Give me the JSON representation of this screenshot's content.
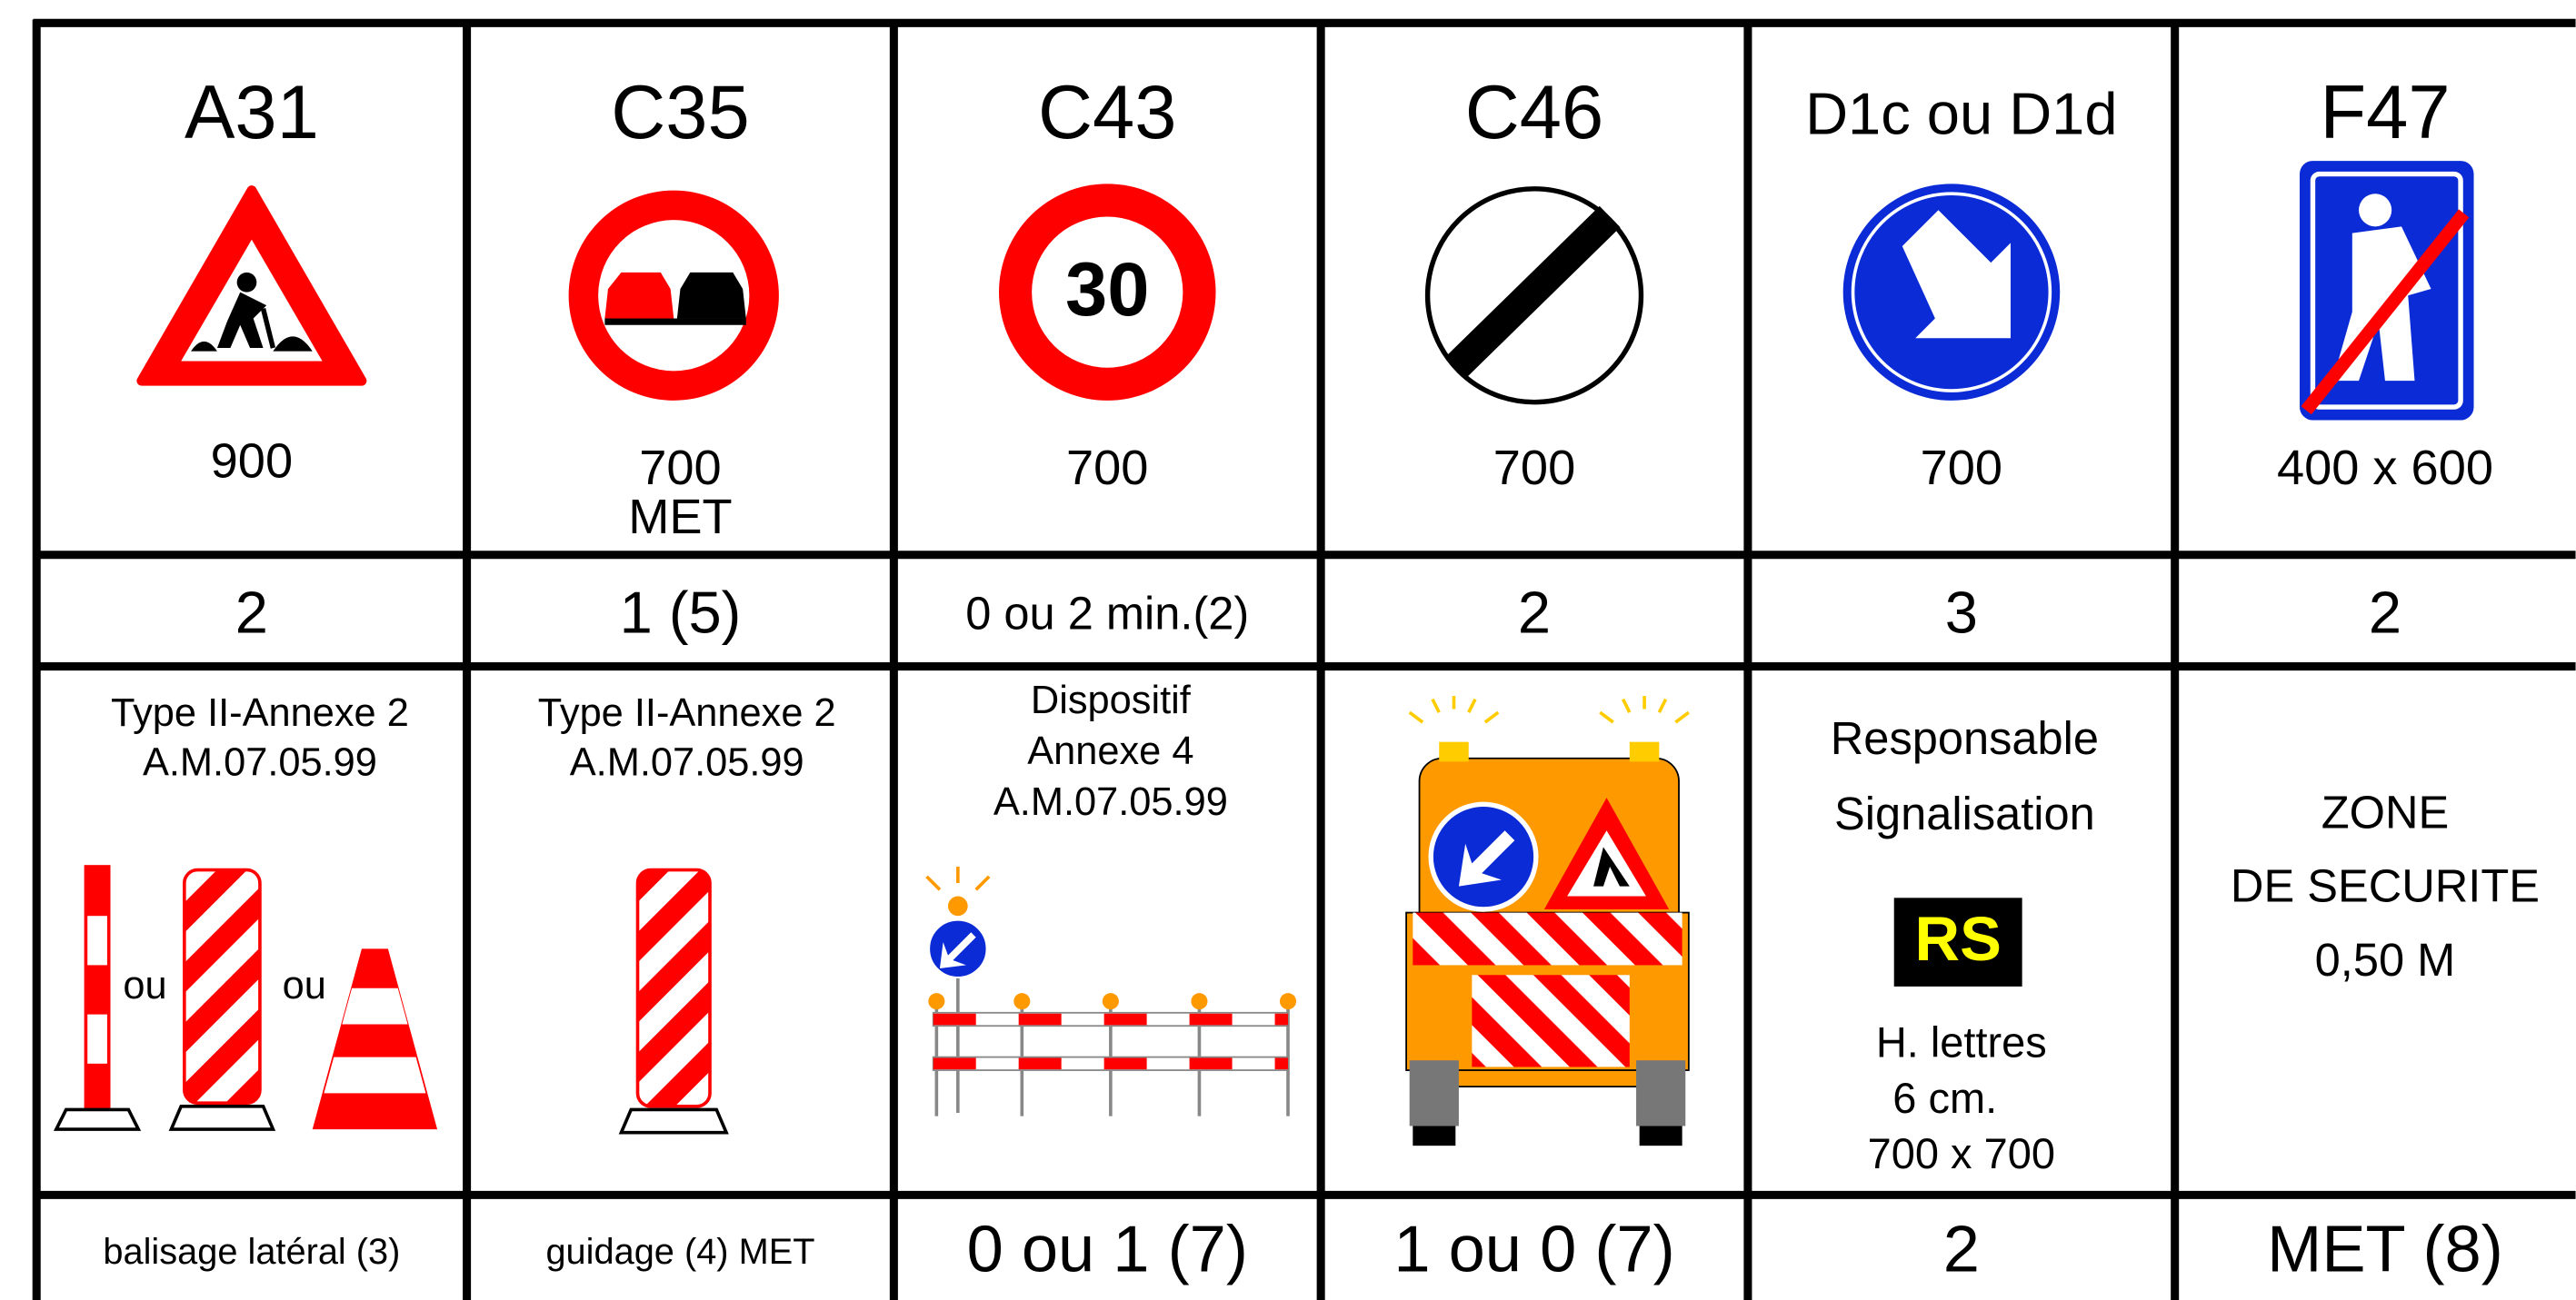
{
  "table": {
    "columns": [
      {
        "code": "A31",
        "size": [
          "900"
        ],
        "quantity": "2",
        "notes": [
          "Type II-Annexe 2",
          "A.M.07.05.99"
        ],
        "figure_labels": [
          "ou",
          "ou"
        ],
        "footer": "balisage latéral (3)"
      },
      {
        "code": "C35",
        "size": [
          "700",
          "MET"
        ],
        "quantity": "1 (5)",
        "notes": [
          "Type II-Annexe 2",
          "A.M.07.05.99"
        ],
        "footer": "guidage (4) MET"
      },
      {
        "code": "C43",
        "sign_text": "30",
        "size": [
          "700"
        ],
        "quantity": "0 ou 2 min.(2)",
        "notes": [
          "Dispositif",
          "Annexe 4",
          "A.M.07.05.99"
        ],
        "footer": "0 ou 1 (7)"
      },
      {
        "code": "C46",
        "size": [
          "700"
        ],
        "quantity": "2",
        "footer": "1 ou 0 (7)"
      },
      {
        "code": "D1c ou D1d",
        "size": [
          "700"
        ],
        "quantity": "3",
        "notes": [
          "Responsable",
          "Signalisation"
        ],
        "badge": "RS",
        "notes_below": [
          "H. lettres",
          "6 cm.",
          "700 x 700"
        ],
        "footer": "2"
      },
      {
        "code": "F47",
        "size": [
          "400 x 600"
        ],
        "quantity": "2",
        "notes": [
          "ZONE",
          "DE SECURITE",
          "0,50 M"
        ],
        "footer": "MET (8)"
      }
    ]
  }
}
